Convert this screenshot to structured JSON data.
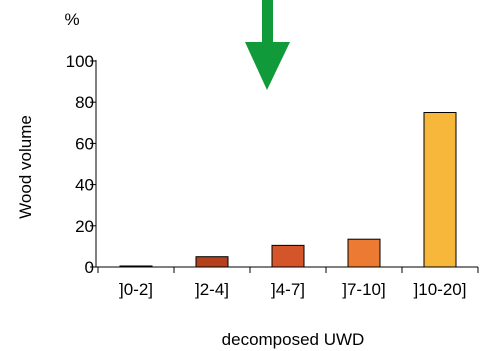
{
  "chart_data": {
    "type": "bar",
    "title": "",
    "ylabel": "Wood volume",
    "yunit": "%",
    "xlabel": "decomposed UWD",
    "categories": [
      "]0-2]",
      "]2-4]",
      "]4-7]",
      "]7-10]",
      "]10-20]"
    ],
    "values": [
      0.5,
      5,
      10.5,
      13.5,
      75
    ],
    "bar_colors": [
      "#a0391f",
      "#b4401c",
      "#d4552a",
      "#ec7a32",
      "#f7b73b"
    ],
    "ylim": [
      0,
      100
    ],
    "yticks": [
      0,
      20,
      40,
      60,
      80,
      100
    ],
    "grid": false,
    "annotation": {
      "type": "arrow",
      "direction": "down",
      "color": "#119a3a"
    }
  }
}
